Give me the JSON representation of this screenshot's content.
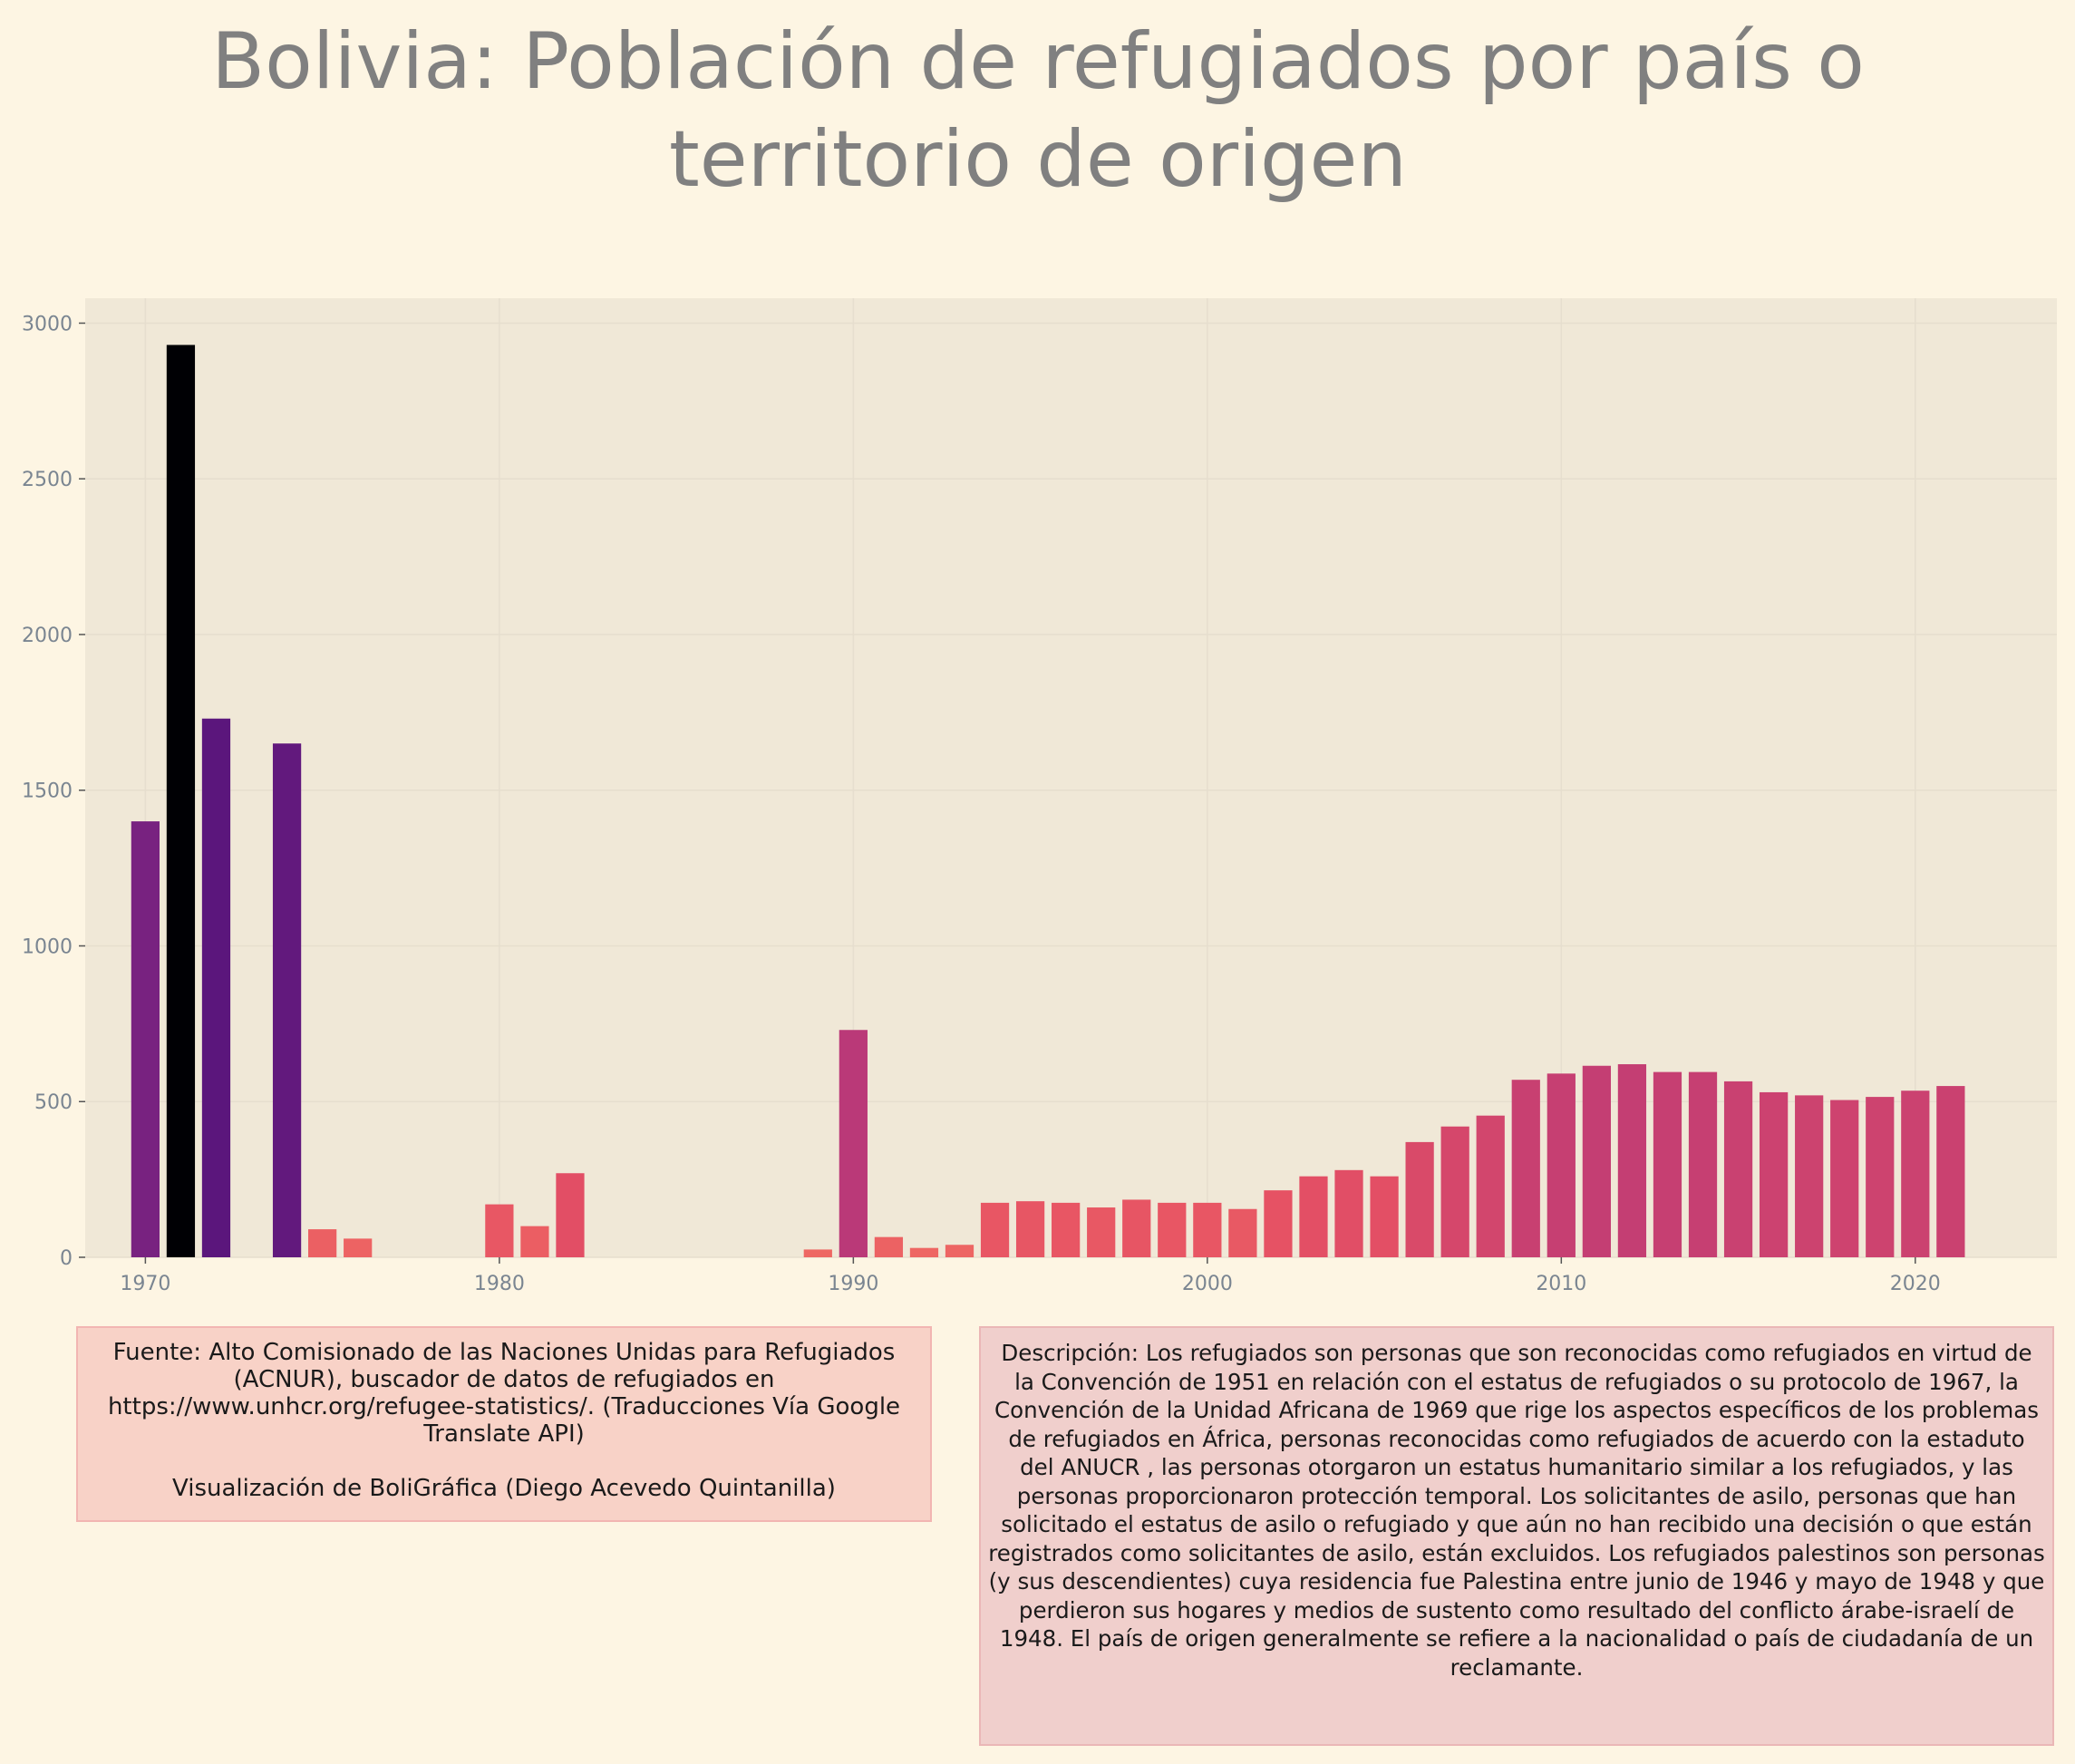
{
  "title": "Bolivia:  Población de refugiados por país o territorio de origen",
  "source": {
    "text": "Fuente: Alto Comisionado de las Naciones Unidas para Refugiados (ACNUR), buscador de datos de refugiados en https://www.unhcr.org/refugee-statistics/. (Traducciones Vía Google Translate API)",
    "credit": "Visualización de BoliGráfica (Diego Acevedo Quintanilla)"
  },
  "description": "Descripción: Los refugiados son personas que son reconocidas como refugiados en virtud de la Convención de 1951 en relación con el estatus de refugiados o su protocolo de 1967, la Convención de la Unidad Africana de 1969 que rige los aspectos específicos de los problemas de refugiados en África, personas reconocidas como refugiados de acuerdo con la estaduto del ANUCR , las personas otorgaron un estatus humanitario similar a los refugiados, y las personas proporcionaron protección temporal. Los solicitantes de asilo, personas que han solicitado el estatus de asilo o refugiado y que aún no han recibido una decisión o que están registrados como solicitantes de asilo, están excluidos. Los refugiados palestinos son personas (y sus descendientes) cuya residencia fue Palestina entre junio de 1946 y mayo de 1948 y que perdieron sus hogares y medios de sustento como resultado del conflicto árabe-israelí de 1948. El país de origen generalmente se refiere a la nacionalidad o país de ciudadanía de un reclamante.",
  "colors": {
    "page_background": "#fdf5e3",
    "plot_background": "#f0e8d7",
    "colormap": "magma"
  },
  "chart_data": {
    "type": "bar",
    "title": "Bolivia:  Población de refugiados por país o territorio de origen",
    "xlabel": "",
    "ylabel": "",
    "x": [
      1970,
      1971,
      1972,
      1974,
      1975,
      1976,
      1980,
      1981,
      1982,
      1989,
      1990,
      1991,
      1992,
      1993,
      1994,
      1995,
      1996,
      1997,
      1998,
      1999,
      2000,
      2001,
      2002,
      2003,
      2004,
      2005,
      2006,
      2007,
      2008,
      2009,
      2010,
      2011,
      2012,
      2013,
      2014,
      2015,
      2016,
      2017,
      2018,
      2019,
      2020,
      2021
    ],
    "values": [
      1400,
      2930,
      1730,
      1650,
      90,
      60,
      170,
      100,
      270,
      25,
      730,
      65,
      30,
      40,
      175,
      180,
      175,
      160,
      185,
      175,
      175,
      155,
      215,
      260,
      280,
      260,
      370,
      420,
      455,
      570,
      590,
      615,
      620,
      595,
      595,
      565,
      530,
      520,
      505,
      515,
      535,
      550
    ],
    "xlim": [
      1968.3,
      2024.0
    ],
    "ylim": [
      0,
      3080
    ],
    "xticks": [
      1970,
      1980,
      1990,
      2000,
      2010,
      2020
    ],
    "yticks": [
      0,
      500,
      1000,
      1500,
      2000,
      2500,
      3000
    ],
    "grid": true,
    "legend": "none"
  }
}
